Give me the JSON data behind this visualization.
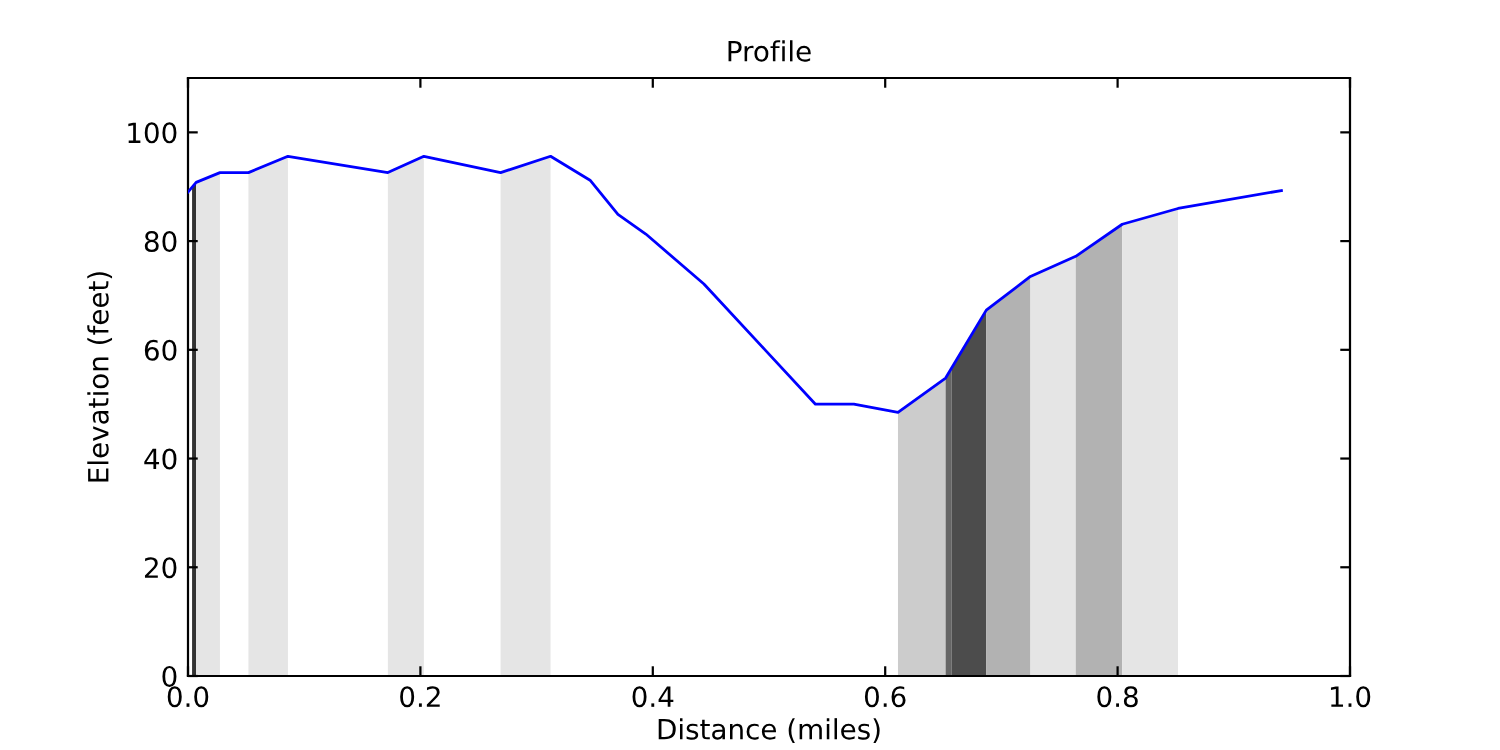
{
  "chart_data": {
    "type": "line",
    "title": "Profile",
    "xlabel": "Distance (miles)",
    "ylabel": "Elevation (feet)",
    "xlim": [
      0,
      1
    ],
    "ylim": [
      0,
      110
    ],
    "xticks": [
      {
        "value": 0,
        "label": "0.0"
      },
      0.2,
      0.4,
      0.6,
      0.8,
      {
        "value": 1,
        "label": "1.0"
      }
    ],
    "yticks": [
      0,
      20,
      40,
      60,
      80,
      100
    ],
    "grid": false,
    "marker": "none",
    "line_style": "solid",
    "series": [
      {
        "type": "area",
        "color": "#333333",
        "x": [
          0.0035,
          0.007
        ],
        "values": [
          90,
          90.8
        ]
      },
      {
        "type": "area",
        "color": "#e5e5e5",
        "x": [
          0.007,
          0.0275
        ],
        "values": [
          90.8,
          92.6
        ]
      },
      {
        "type": "area",
        "color": "#e5e5e5",
        "x": [
          0.052,
          0.086
        ],
        "values": [
          92.6,
          95.6
        ]
      },
      {
        "type": "area",
        "color": "#e5e5e5",
        "x": [
          0.172,
          0.203
        ],
        "values": [
          92.6,
          95.6
        ]
      },
      {
        "type": "area",
        "color": "#e5e5e5",
        "x": [
          0.269,
          0.312
        ],
        "values": [
          92.6,
          95.6
        ]
      },
      {
        "type": "area",
        "color": "#cccccc",
        "x": [
          0.611,
          0.652
        ],
        "values": [
          48.5,
          54.8
        ]
      },
      {
        "type": "area",
        "color": "#666666",
        "x": [
          0.652,
          0.657
        ],
        "values": [
          54.8,
          56.4
        ]
      },
      {
        "type": "area",
        "color": "#4c4c4c",
        "x": [
          0.657,
          0.687
        ],
        "values": [
          56.4,
          67.3
        ]
      },
      {
        "type": "area",
        "color": "#b2b2b2",
        "x": [
          0.687,
          0.725
        ],
        "values": [
          67.3,
          73.5
        ]
      },
      {
        "type": "area",
        "color": "#e5e5e5",
        "x": [
          0.725,
          0.764
        ],
        "values": [
          73.5,
          77.2
        ]
      },
      {
        "type": "area",
        "color": "#b2b2b2",
        "x": [
          0.764,
          0.804
        ],
        "values": [
          77.2,
          83.1
        ]
      },
      {
        "type": "area",
        "color": "#e5e5e5",
        "x": [
          0.804,
          0.852
        ],
        "values": [
          83.1,
          86
        ]
      },
      {
        "color": "#0000ff",
        "x": [
          0,
          0.007,
          0.0275,
          0.052,
          0.086,
          0.172,
          0.203,
          0.269,
          0.312,
          0.346,
          0.37,
          0.394,
          0.444,
          0.497,
          0.54,
          0.573,
          0.611,
          0.652,
          0.687,
          0.725,
          0.764,
          0.804,
          0.852,
          0.941
        ],
        "values": [
          89,
          90.8,
          92.6,
          92.6,
          95.6,
          92.6,
          95.6,
          92.6,
          95.6,
          91.2,
          84.9,
          81.3,
          72.1,
          59.9,
          50,
          50,
          48.5,
          54.8,
          67.3,
          73.5,
          77.2,
          83.1,
          86,
          89.3
        ]
      }
    ]
  }
}
